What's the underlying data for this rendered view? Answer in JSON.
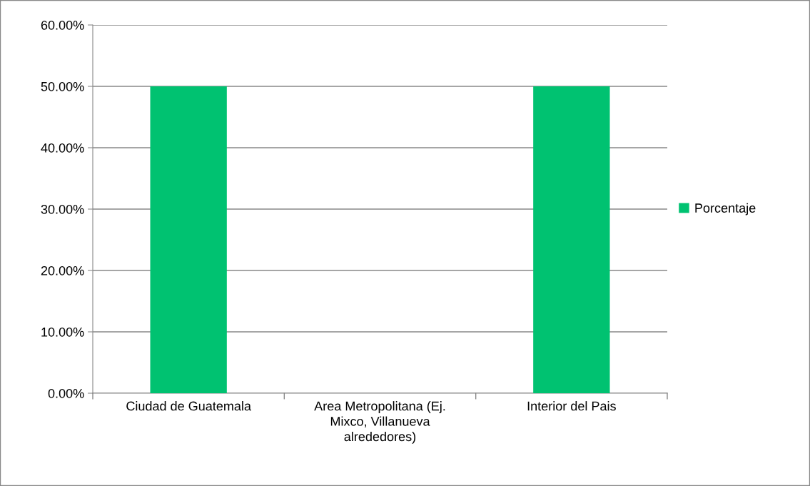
{
  "chart_data": {
    "type": "bar",
    "categories": [
      "Ciudad de Guatemala",
      "Area Metropolitana (Ej.\nMixco, Villanueva\nalrededores)",
      "Interior del Pais"
    ],
    "series": [
      {
        "name": "Porcentaje",
        "color": "#00c271",
        "values": [
          50,
          0,
          50
        ]
      }
    ],
    "ylim": [
      0,
      60
    ],
    "yticks": [
      {
        "value": 0,
        "label": "0.00%"
      },
      {
        "value": 10,
        "label": "10.00%"
      },
      {
        "value": 20,
        "label": "20.00%"
      },
      {
        "value": 30,
        "label": "30.00%"
      },
      {
        "value": 40,
        "label": "40.00%"
      },
      {
        "value": 50,
        "label": "50.00%"
      },
      {
        "value": 60,
        "label": "60.00%"
      }
    ],
    "grid": "y",
    "legend": "right"
  }
}
